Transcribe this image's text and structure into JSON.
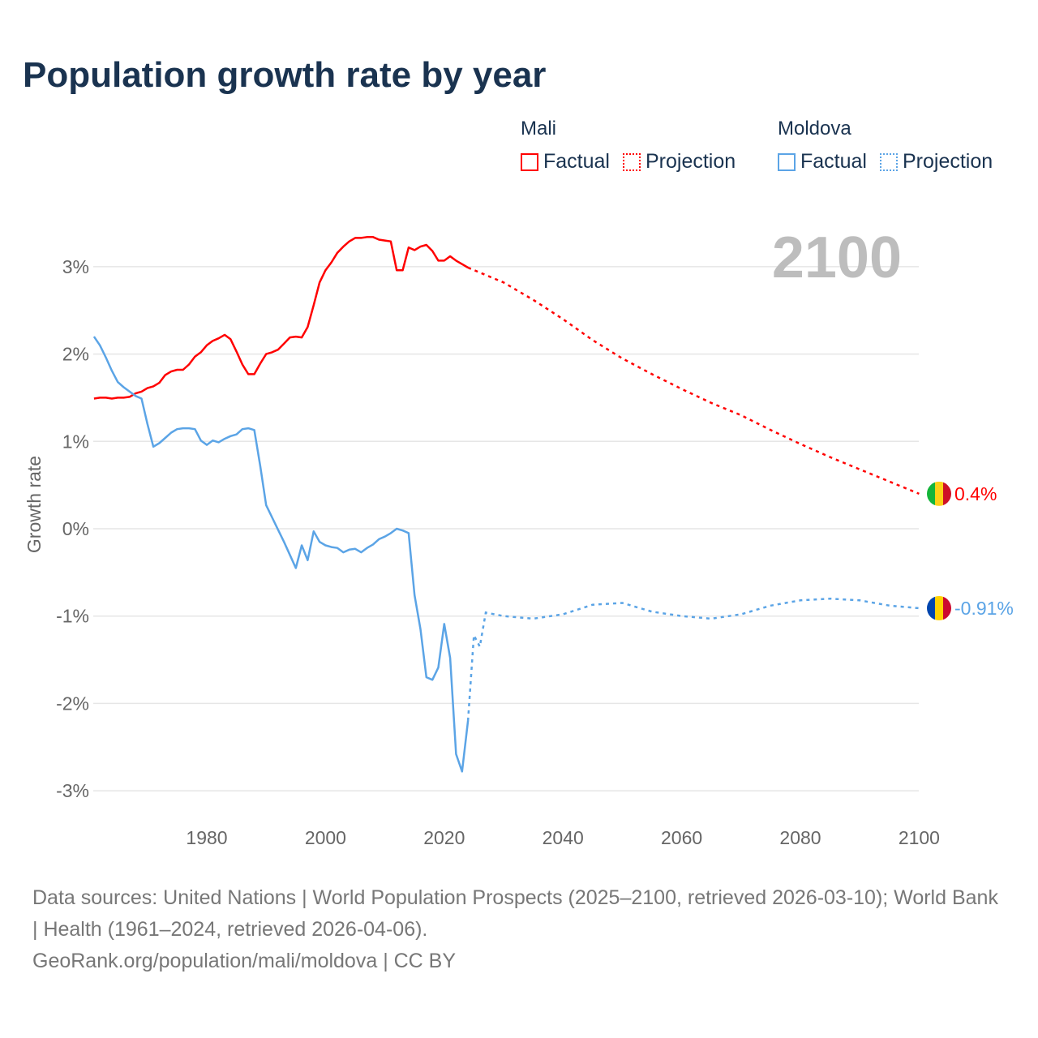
{
  "title": "Population growth rate by year",
  "legend": {
    "groups": [
      {
        "name": "Mali",
        "factual": "Factual",
        "projection": "Projection",
        "color": "#ff0000"
      },
      {
        "name": "Moldova",
        "factual": "Factual",
        "projection": "Projection",
        "color": "#5ba4e6"
      }
    ]
  },
  "year_label": "2100",
  "footer": {
    "sources": "Data sources: United Nations | World Population Prospects (2025–2100, retrieved 2026-03-10); World Bank | Health (1961–2024, retrieved 2026-04-06).",
    "credit": "GeoRank.org/population/mali/moldova | CC BY"
  },
  "chart_data": {
    "type": "line",
    "title": "Population growth rate by year",
    "xlabel": "",
    "ylabel": "Growth rate",
    "xlim": [
      1961,
      2100
    ],
    "ylim": [
      -3.1,
      3.6
    ],
    "xticks": [
      1980,
      2000,
      2020,
      2040,
      2060,
      2080,
      2100
    ],
    "yticks": [
      3,
      2,
      1,
      0,
      -1,
      -2,
      -3
    ],
    "ytick_labels": [
      "3%",
      "2%",
      "1%",
      "0%",
      "-1%",
      "-2%",
      "-3%"
    ],
    "grid": true,
    "series": [
      {
        "name": "Mali",
        "color": "#ff0000",
        "end_label": "0.4%",
        "factual_start": 1961,
        "factual": [
          1.49,
          1.5,
          1.5,
          1.49,
          1.5,
          1.5,
          1.51,
          1.55,
          1.57,
          1.61,
          1.63,
          1.67,
          1.76,
          1.8,
          1.82,
          1.82,
          1.88,
          1.97,
          2.02,
          2.1,
          2.15,
          2.18,
          2.22,
          2.17,
          2.03,
          1.88,
          1.77,
          1.77,
          1.89,
          2.0,
          2.02,
          2.05,
          2.12,
          2.19,
          2.2,
          2.19,
          2.31,
          2.56,
          2.82,
          2.96,
          3.05,
          3.16,
          3.23,
          3.29,
          3.33,
          3.33,
          3.34,
          3.34,
          3.31,
          3.3,
          3.29,
          2.96,
          2.96,
          3.22,
          3.19,
          3.23,
          3.25,
          3.18,
          3.07,
          3.07,
          3.12,
          3.07,
          3.03,
          2.99
        ],
        "projection_x": [
          2024,
          2030,
          2035,
          2040,
          2045,
          2050,
          2055,
          2060,
          2065,
          2070,
          2075,
          2080,
          2085,
          2090,
          2095,
          2100
        ],
        "projection": [
          2.99,
          2.82,
          2.62,
          2.4,
          2.16,
          1.95,
          1.77,
          1.6,
          1.44,
          1.3,
          1.13,
          0.97,
          0.82,
          0.68,
          0.54,
          0.4
        ]
      },
      {
        "name": "Moldova",
        "color": "#5ba4e6",
        "end_label": "-0.91%",
        "factual_start": 1961,
        "factual": [
          2.2,
          2.1,
          1.96,
          1.81,
          1.68,
          1.62,
          1.57,
          1.52,
          1.49,
          1.2,
          0.94,
          0.98,
          1.04,
          1.1,
          1.14,
          1.15,
          1.15,
          1.14,
          1.01,
          0.96,
          1.01,
          0.99,
          1.03,
          1.06,
          1.08,
          1.14,
          1.15,
          1.13,
          0.72,
          0.27,
          0.13,
          -0.01,
          -0.15,
          -0.3,
          -0.45,
          -0.19,
          -0.36,
          -0.03,
          -0.15,
          -0.19,
          -0.21,
          -0.22,
          -0.27,
          -0.24,
          -0.23,
          -0.27,
          -0.22,
          -0.18,
          -0.12,
          -0.09,
          -0.05,
          0.0,
          -0.02,
          -0.05,
          -0.76,
          -1.15,
          -1.7,
          -1.73,
          -1.59,
          -1.09,
          -1.48,
          -2.58,
          -2.78,
          -2.2
        ],
        "projection_x": [
          2024,
          2025,
          2026,
          2027,
          2030,
          2035,
          2040,
          2045,
          2050,
          2055,
          2060,
          2065,
          2070,
          2075,
          2080,
          2085,
          2090,
          2095,
          2100
        ],
        "projection": [
          -2.2,
          -1.22,
          -1.35,
          -0.96,
          -1.0,
          -1.03,
          -0.98,
          -0.87,
          -0.85,
          -0.95,
          -1.0,
          -1.03,
          -0.98,
          -0.88,
          -0.82,
          -0.8,
          -0.82,
          -0.88,
          -0.91
        ]
      }
    ]
  }
}
